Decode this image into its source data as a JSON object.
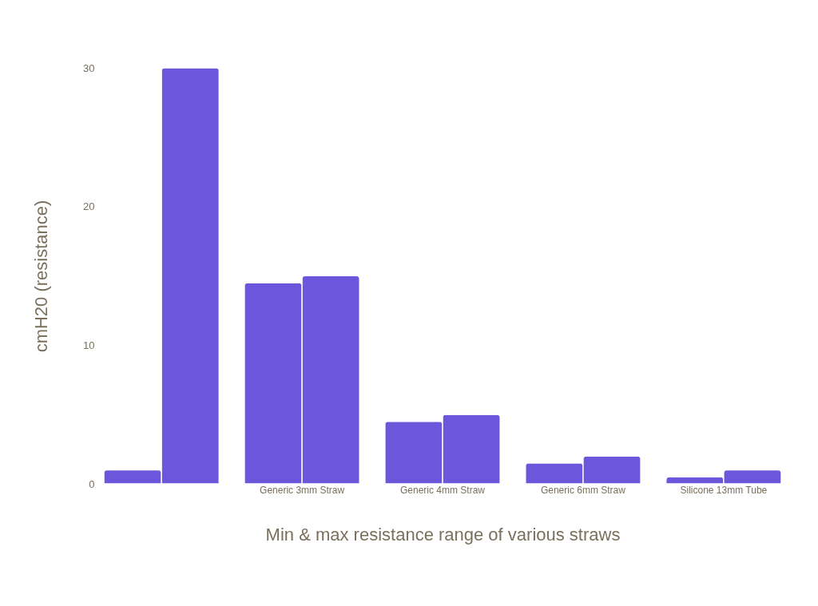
{
  "chart_data": {
    "type": "bar",
    "xlabel": "Min & max resistance range of various straws",
    "ylabel": "cmH20 (resistance)",
    "categories": [
      null,
      "Generic 3mm Straw",
      "Generic 4mm Straw",
      "Generic 6mm Straw",
      "Silicone 13mm Tube"
    ],
    "series": [
      {
        "color": "#6c57dc",
        "values": [
          1,
          14.5,
          4.5,
          1.5,
          0.5
        ]
      },
      {
        "color": "#6c57dc",
        "values": [
          30,
          15,
          5,
          2,
          1
        ]
      }
    ],
    "ylim": [
      0,
      30
    ],
    "yticks": [
      0,
      10,
      20,
      30
    ],
    "grid": false
  }
}
